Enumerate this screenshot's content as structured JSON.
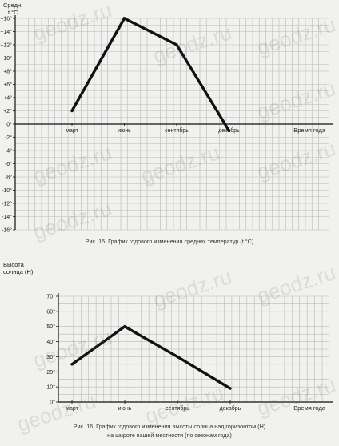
{
  "watermark": "geodz.ru",
  "colors": {
    "background": "#f1f1ef",
    "grid": "#b9b9b9",
    "line": "#111111"
  },
  "chart_data": [
    {
      "type": "line",
      "title": "Рис. 15. График годового изменения средних температур (t °C)",
      "ylabel_line1": "Средн.",
      "ylabel_line2": "t °C",
      "xlabel": "Время года",
      "categories": [
        "март",
        "июнь",
        "сентябрь",
        "декабрь"
      ],
      "ylim": [
        -16,
        16
      ],
      "yticks": [
        "+16°",
        "+14°",
        "+12°",
        "+10°",
        "+8°",
        "+6°",
        "+4°",
        "+2°",
        "0°",
        "-2°",
        "-4°",
        "-6°",
        "-8°",
        "-10°",
        "-12°",
        "-14°",
        "-16°"
      ],
      "series": [
        {
          "values": [
            2,
            16,
            12,
            -1
          ]
        }
      ],
      "grid": true
    },
    {
      "type": "line",
      "title": "Рис. 16. График годового изменения высоты солнца над горизонтом (H)",
      "subtitle": "на широте вашей местности (по сезонам года)",
      "ylabel_line1": "Высота",
      "ylabel_line2": "солнца (H)",
      "xlabel": "Время года",
      "categories": [
        "март",
        "июнь",
        "сентябрь",
        "декабрь"
      ],
      "ylim": [
        0,
        70
      ],
      "yticks": [
        "70°",
        "60°",
        "50°",
        "40°",
        "30°",
        "20°",
        "10°",
        "0°"
      ],
      "series": [
        {
          "values": [
            25,
            50,
            30,
            9
          ]
        }
      ],
      "grid": true
    }
  ]
}
